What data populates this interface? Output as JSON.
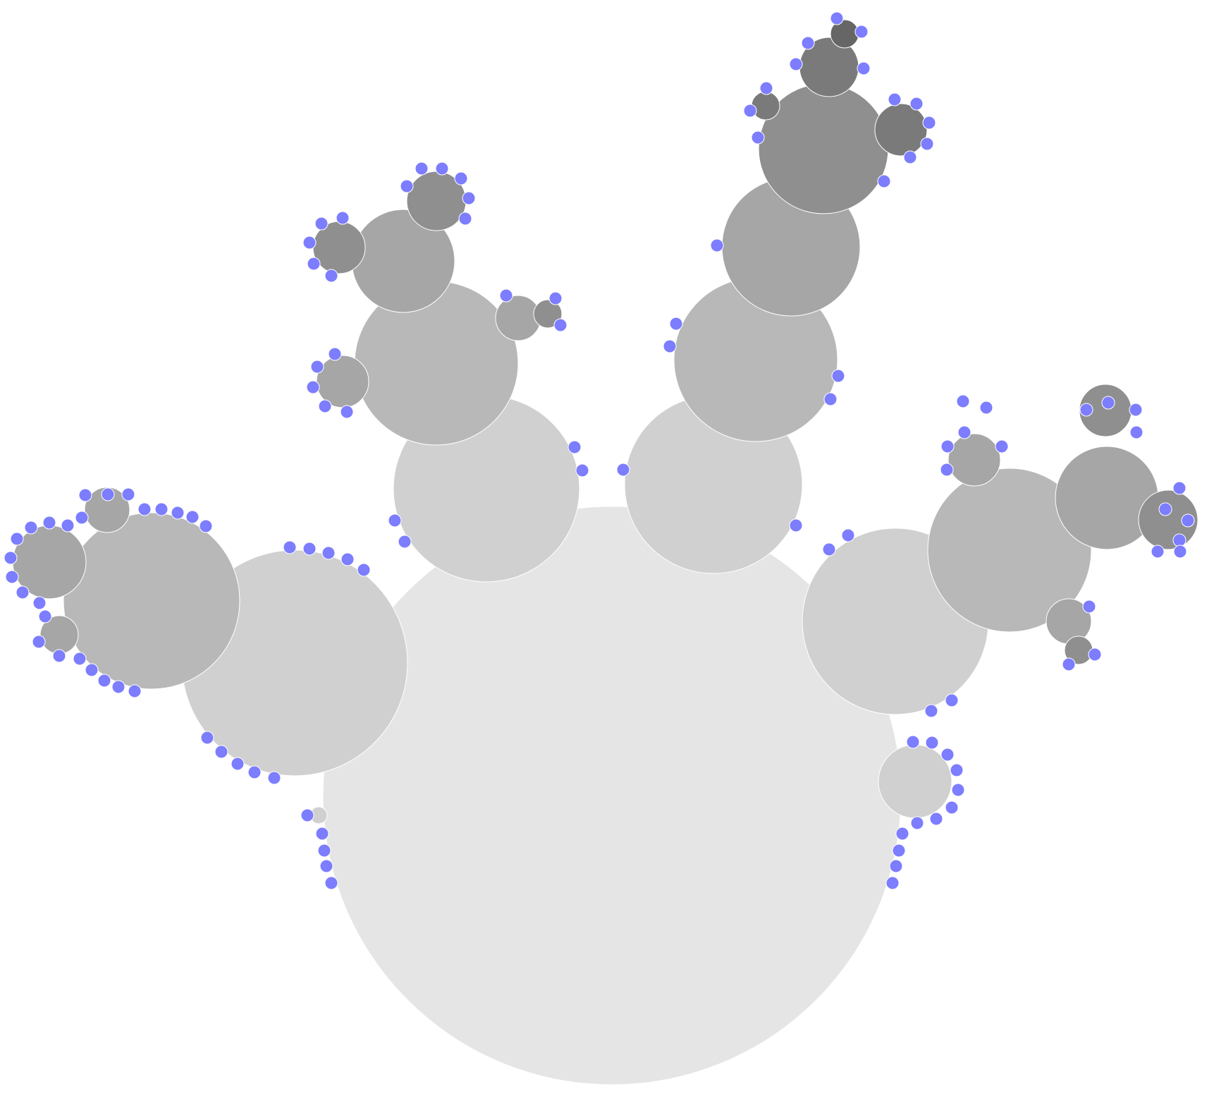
{
  "diagram": {
    "type": "bubble-tree",
    "colors": {
      "background": "#ffffff",
      "leaf": "#7d7dff",
      "depth_fills": [
        "#e5e5e5",
        "#d0d0d0",
        "#b8b8b8",
        "#a6a6a6",
        "#8f8f8f",
        "#7a7a7a",
        "#666666"
      ]
    },
    "node_count": 41,
    "leaf_count": 176
  }
}
